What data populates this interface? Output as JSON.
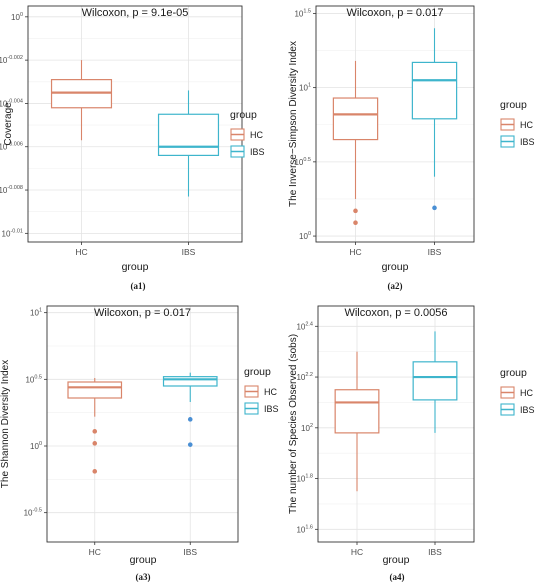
{
  "chart_data": [
    {
      "id": "a1",
      "type": "boxplot",
      "caption": "(a1)",
      "annotation": "Wilcoxon, p = 9.1e-05",
      "xlabel": "group",
      "ylabel": "Coverage",
      "categories": [
        "HC",
        "IBS"
      ],
      "y_scale": "log10",
      "y_ticks": [
        {
          "value": 0,
          "label": "10^0"
        },
        {
          "value": -0.002,
          "label": "10^-0.002"
        },
        {
          "value": -0.004,
          "label": "10^-0.004"
        },
        {
          "value": -0.006,
          "label": "10^-0.006"
        },
        {
          "value": -0.008,
          "label": "10^-0.008"
        },
        {
          "value": -0.01,
          "label": "10^-0.01"
        }
      ],
      "ylim": [
        -0.0104,
        0.0005
      ],
      "series": [
        {
          "category": "HC",
          "whisker_low": -0.0057,
          "q1": -0.0042,
          "median": -0.0035,
          "q3": -0.0029,
          "whisker_high": -0.002,
          "outliers": []
        },
        {
          "category": "IBS",
          "whisker_low": -0.0083,
          "q1": -0.0064,
          "median": -0.006,
          "q3": -0.0045,
          "whisker_high": -0.0034,
          "outliers": []
        }
      ],
      "legend": {
        "title": "group",
        "entries": [
          "HC",
          "IBS"
        ],
        "position": "right"
      },
      "grid": true
    },
    {
      "id": "a2",
      "type": "boxplot",
      "caption": "(a2)",
      "annotation": "Wilcoxon, p = 0.017",
      "xlabel": "group",
      "ylabel": "The Inverse−Simpson Diversity Index",
      "categories": [
        "HC",
        "IBS"
      ],
      "y_scale": "log10",
      "y_ticks": [
        {
          "value": 1.5,
          "label": "10^1.5"
        },
        {
          "value": 1,
          "label": "10^1"
        },
        {
          "value": 0.5,
          "label": "10^0.5"
        },
        {
          "value": 0,
          "label": "10^0"
        }
      ],
      "ylim": [
        -0.04,
        1.55
      ],
      "series": [
        {
          "category": "HC",
          "whisker_low": 0.25,
          "q1": 0.65,
          "median": 0.82,
          "q3": 0.93,
          "whisker_high": 1.18,
          "outliers": [
            0.17,
            0.09
          ]
        },
        {
          "category": "IBS",
          "whisker_low": 0.4,
          "q1": 0.79,
          "median": 1.05,
          "q3": 1.17,
          "whisker_high": 1.4,
          "outliers": [
            0.19
          ]
        }
      ],
      "legend": {
        "title": "group",
        "entries": [
          "HC",
          "IBS"
        ],
        "position": "right"
      },
      "grid": true
    },
    {
      "id": "a3",
      "type": "boxplot",
      "caption": "(a3)",
      "annotation": "Wilcoxon, p = 0.017",
      "xlabel": "group",
      "ylabel": "The Shannon Diversity Index",
      "categories": [
        "HC",
        "IBS"
      ],
      "y_scale": "log10",
      "y_ticks": [
        {
          "value": 1,
          "label": "10^1"
        },
        {
          "value": 0.5,
          "label": "10^0.5"
        },
        {
          "value": 0,
          "label": "10^0"
        },
        {
          "value": -0.5,
          "label": "10^-0.5"
        }
      ],
      "ylim": [
        -0.72,
        1.05
      ],
      "series": [
        {
          "category": "HC",
          "whisker_low": 0.22,
          "q1": 0.36,
          "median": 0.44,
          "q3": 0.48,
          "whisker_high": 0.51,
          "outliers": [
            0.11,
            0.02,
            -0.19
          ]
        },
        {
          "category": "IBS",
          "whisker_low": 0.33,
          "q1": 0.45,
          "median": 0.5,
          "q3": 0.52,
          "whisker_high": 0.55,
          "outliers": [
            0.2,
            0.01
          ]
        }
      ],
      "legend": {
        "title": "group",
        "entries": [
          "HC",
          "IBS"
        ],
        "position": "right"
      },
      "grid": true
    },
    {
      "id": "a4",
      "type": "boxplot",
      "caption": "(a4)",
      "annotation": "Wilcoxon, p = 0.0056",
      "xlabel": "group",
      "ylabel": "The number of Species Observed (sobs)",
      "categories": [
        "HC",
        "IBS"
      ],
      "y_scale": "log10",
      "y_ticks": [
        {
          "value": 2.4,
          "label": "10^2.4"
        },
        {
          "value": 2.2,
          "label": "10^2.2"
        },
        {
          "value": 2,
          "label": "10^2"
        },
        {
          "value": 1.8,
          "label": "10^1.8"
        },
        {
          "value": 1.6,
          "label": "10^1.6"
        }
      ],
      "ylim": [
        1.55,
        2.48
      ],
      "series": [
        {
          "category": "HC",
          "whisker_low": 1.75,
          "q1": 1.98,
          "median": 2.1,
          "q3": 2.15,
          "whisker_high": 2.3,
          "outliers": []
        },
        {
          "category": "IBS",
          "whisker_low": 1.98,
          "q1": 2.11,
          "median": 2.2,
          "q3": 2.26,
          "whisker_high": 2.38,
          "outliers": []
        }
      ],
      "legend": {
        "title": "group",
        "entries": [
          "HC",
          "IBS"
        ],
        "position": "right"
      },
      "grid": true
    }
  ],
  "colors": {
    "hc": "#d9856a",
    "ibs": "#3eb5cc",
    "ibs_point": "#4a8fd4",
    "grid": "#e4e4e4",
    "text": "#1a1a1a"
  }
}
